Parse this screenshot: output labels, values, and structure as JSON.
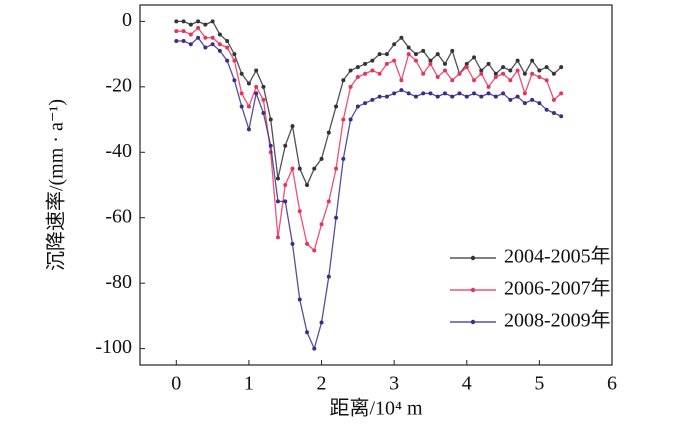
{
  "chart_data": {
    "type": "line",
    "x_label": "距离/10⁴ m",
    "y_label": "沉降速率/(mm · a⁻¹)",
    "x": [
      0,
      0.1,
      0.2,
      0.3,
      0.4,
      0.5,
      0.6,
      0.7,
      0.8,
      0.9,
      1.0,
      1.1,
      1.2,
      1.3,
      1.4,
      1.5,
      1.6,
      1.7,
      1.8,
      1.9,
      2.0,
      2.1,
      2.2,
      2.3,
      2.4,
      2.5,
      2.6,
      2.7,
      2.8,
      2.9,
      3.0,
      3.1,
      3.2,
      3.3,
      3.4,
      3.5,
      3.6,
      3.7,
      3.8,
      3.9,
      4.0,
      4.1,
      4.2,
      4.3,
      4.4,
      4.5,
      4.6,
      4.7,
      4.8,
      4.9,
      5.0,
      5.1,
      5.2,
      5.3
    ],
    "series": [
      {
        "name": "2004-2005年",
        "color": "#333333",
        "values": [
          0,
          0,
          -1,
          0,
          -1,
          0,
          -4,
          -6,
          -10,
          -16,
          -19,
          -15,
          -20,
          -30,
          -48,
          -38,
          -32,
          -45,
          -50,
          -45,
          -42,
          -34,
          -26,
          -18,
          -15,
          -14,
          -13,
          -12,
          -10,
          -10,
          -7,
          -5,
          -8,
          -10,
          -9,
          -12,
          -10,
          -13,
          -9,
          -16,
          -13,
          -11,
          -15,
          -13,
          -16,
          -14,
          -15,
          -12,
          -16,
          -12,
          -15,
          -14,
          -16,
          -14
        ]
      },
      {
        "name": "2006-2007年",
        "color": "#e8335a",
        "values": [
          -3,
          -3,
          -4,
          -2,
          -5,
          -5,
          -7,
          -8,
          -12,
          -22,
          -26,
          -20,
          -24,
          -40,
          -66,
          -50,
          -45,
          -58,
          -68,
          -70,
          -62,
          -55,
          -45,
          -30,
          -20,
          -17,
          -16,
          -15,
          -16,
          -13,
          -12,
          -18,
          -10,
          -12,
          -16,
          -13,
          -17,
          -15,
          -18,
          -16,
          -14,
          -18,
          -16,
          -20,
          -17,
          -16,
          -18,
          -15,
          -22,
          -16,
          -17,
          -18,
          -24,
          -22
        ]
      },
      {
        "name": "2008-2009年",
        "color": "#3b2e8a",
        "values": [
          -6,
          -6,
          -7,
          -5,
          -8,
          -7,
          -9,
          -12,
          -18,
          -26,
          -33,
          -22,
          -28,
          -38,
          -55,
          -55,
          -68,
          -85,
          -95,
          -100,
          -92,
          -78,
          -60,
          -42,
          -30,
          -26,
          -25,
          -24,
          -23,
          -23,
          -22,
          -21,
          -22,
          -23,
          -22,
          -22,
          -23,
          -22,
          -23,
          -22,
          -23,
          -22,
          -23,
          -22,
          -23,
          -22,
          -24,
          -23,
          -25,
          -24,
          -25,
          -27,
          -28,
          -29
        ]
      }
    ],
    "xlim": [
      -0.5,
      6
    ],
    "xticks": [
      0,
      1,
      2,
      3,
      4,
      5,
      6
    ],
    "ylim": [
      -105,
      5
    ],
    "yticks": [
      0,
      -20,
      -40,
      -60,
      -80,
      -100
    ],
    "legend": "lower right"
  }
}
